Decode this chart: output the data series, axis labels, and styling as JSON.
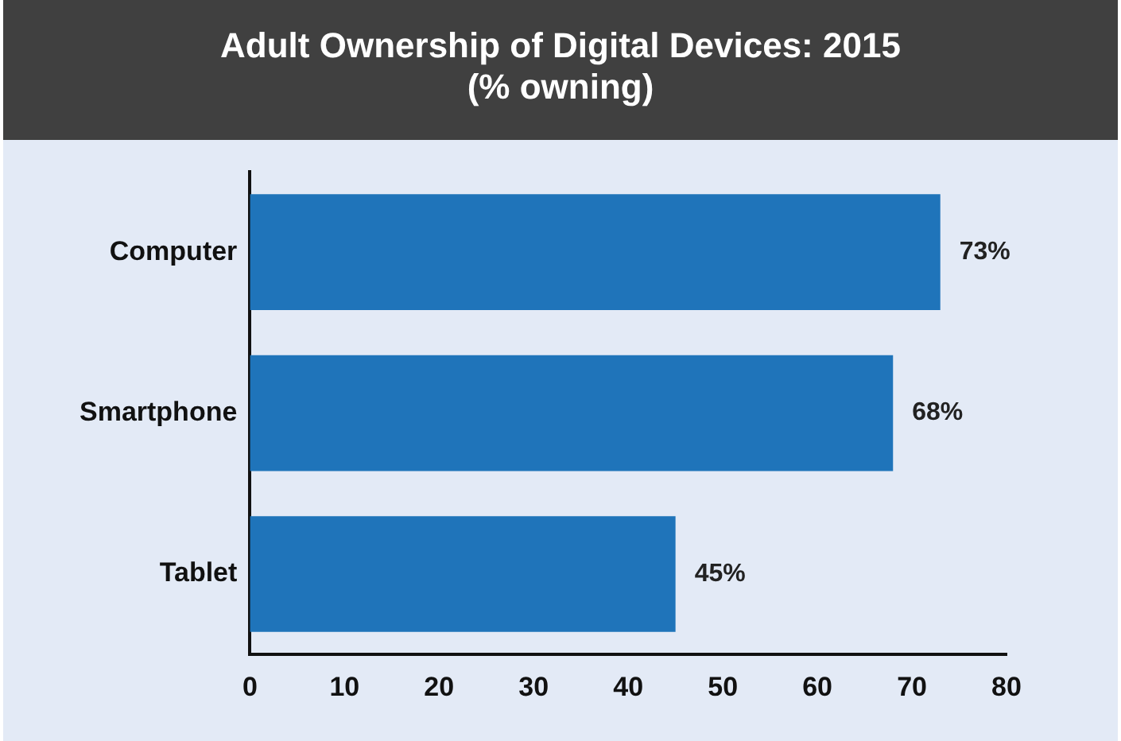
{
  "chart_data": {
    "type": "bar",
    "orientation": "horizontal",
    "title": "Adult Ownership of Digital Devices: 2015",
    "subtitle": "(% owning)",
    "categories": [
      "Computer",
      "Smartphone",
      "Tablet"
    ],
    "values": [
      73,
      68,
      45
    ],
    "color": "#1f74ba",
    "value_labels": [
      "73%",
      "68%",
      "45%"
    ],
    "xlim": [
      0,
      80
    ],
    "xticks": [
      0,
      10,
      20,
      30,
      40,
      50,
      60,
      70,
      80
    ],
    "grid": false,
    "legend": false
  }
}
